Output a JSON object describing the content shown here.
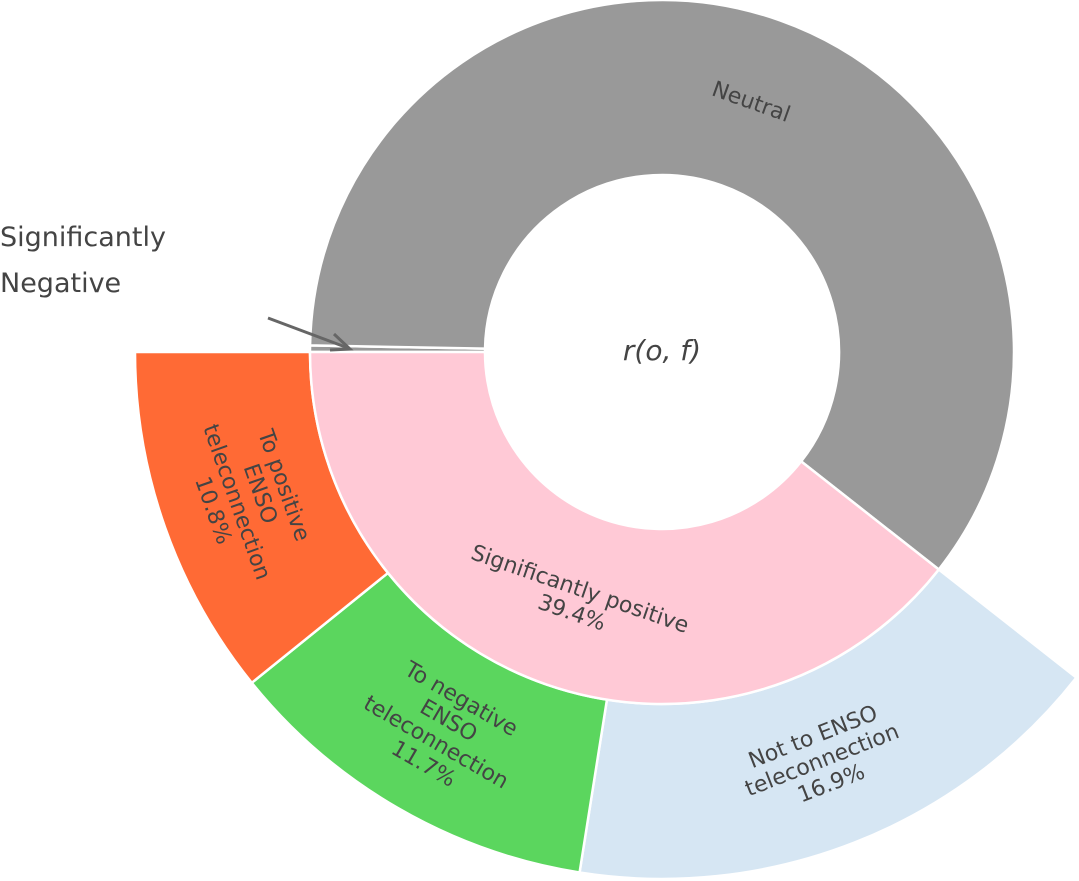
{
  "chart_data": {
    "type": "sunburst",
    "center_label": "r(o, f)",
    "annotation": [
      "Significantly",
      "Negative"
    ],
    "rings": [
      {
        "categories": [
          [
            "Significantly positive"
          ],
          [
            "Neutral"
          ],
          null
        ],
        "values": [
          39.4,
          60.3,
          0.3
        ],
        "value_labels": [
          "39.4%",
          null,
          null
        ],
        "colors": [
          "#ffc9d6",
          "#999999",
          "#999999"
        ]
      },
      {
        "categories": [
          [
            "To positive",
            "ENSO",
            "teleconnection"
          ],
          [
            "To negative",
            "ENSO",
            "teleconnection"
          ],
          [
            "Not to ENSO",
            "teleconnection"
          ]
        ],
        "values": [
          10.8,
          11.7,
          16.9
        ],
        "value_labels": [
          "10.8%",
          "11.7%",
          "16.9%"
        ],
        "colors": [
          "#ff6a35",
          "#5bd65e",
          "#d6e6f3"
        ]
      }
    ]
  }
}
